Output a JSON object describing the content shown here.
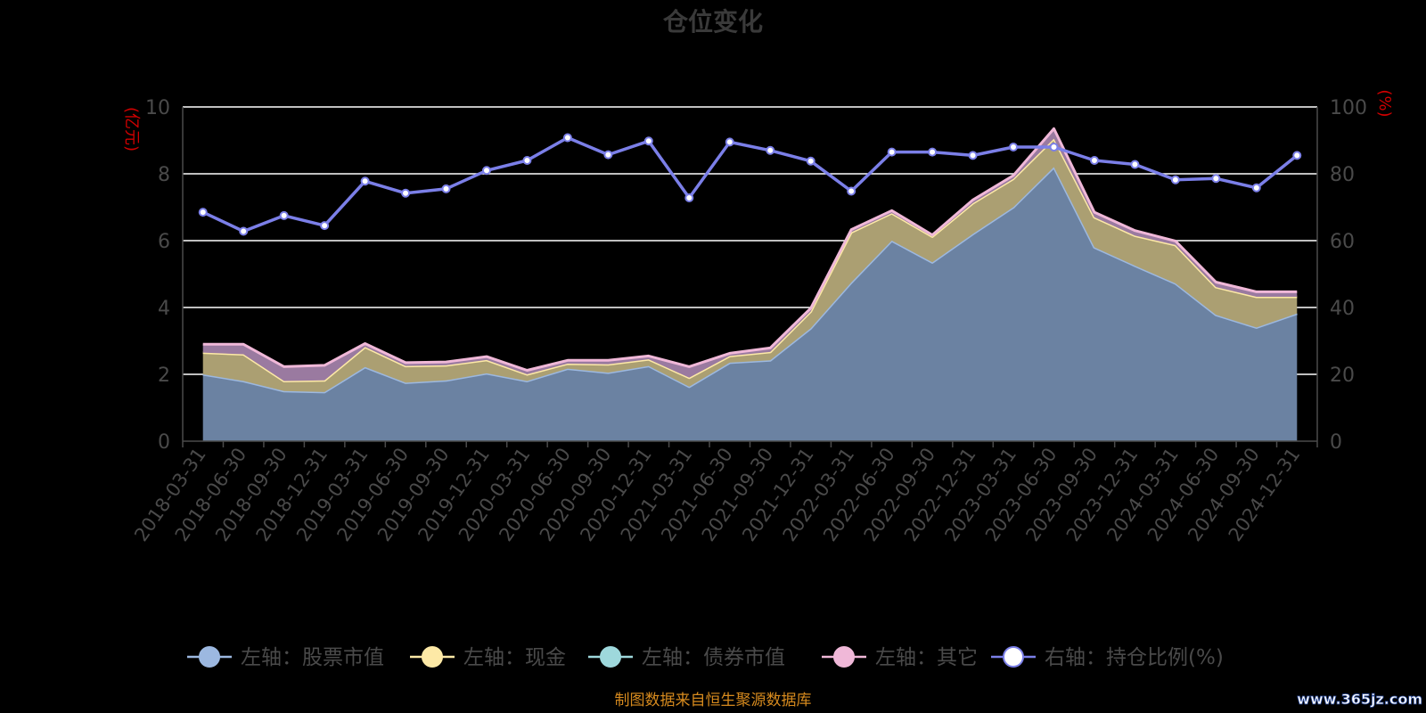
{
  "chart_data": {
    "type": "area",
    "title": "仓位变化",
    "left_axis_unit": "(亿元)",
    "right_axis_unit": "(%)",
    "ylim_left": [
      0,
      10
    ],
    "ylim_right": [
      0,
      100
    ],
    "yticks_left": [
      "0",
      "2",
      "4",
      "6",
      "8",
      "10"
    ],
    "yticks_right": [
      "0",
      "20",
      "40",
      "60",
      "80",
      "100"
    ],
    "grid": true,
    "stacked": true,
    "legend_position": "bottom",
    "categories": [
      "2018-03-31",
      "2018-06-30",
      "2018-09-30",
      "2018-12-31",
      "2019-03-31",
      "2019-06-30",
      "2019-09-30",
      "2019-12-31",
      "2020-03-31",
      "2020-06-30",
      "2020-09-30",
      "2020-12-31",
      "2021-03-31",
      "2021-06-30",
      "2021-09-30",
      "2021-12-31",
      "2022-03-31",
      "2022-06-30",
      "2022-09-30",
      "2022-12-31",
      "2023-03-31",
      "2023-06-30",
      "2023-09-30",
      "2023-12-31",
      "2024-03-31",
      "2024-06-30",
      "2024-09-30",
      "2024-12-31"
    ],
    "series": [
      {
        "name": "左轴：股票市值",
        "axis": "left",
        "color": "#9cb8e0",
        "fill": "#6b82a2",
        "values": [
          2.0,
          1.8,
          1.5,
          1.47,
          2.22,
          1.75,
          1.82,
          2.03,
          1.8,
          2.17,
          2.05,
          2.25,
          1.63,
          2.35,
          2.42,
          3.38,
          4.75,
          6.0,
          5.35,
          6.2,
          7.0,
          8.2,
          5.8,
          5.25,
          4.72,
          3.78,
          3.4,
          3.82
        ]
      },
      {
        "name": "左轴：现金",
        "axis": "left",
        "color": "#fde9a6",
        "fill": "#ab9f72",
        "values": [
          0.65,
          0.8,
          0.3,
          0.35,
          0.6,
          0.5,
          0.45,
          0.4,
          0.2,
          0.15,
          0.25,
          0.2,
          0.27,
          0.2,
          0.25,
          0.5,
          1.5,
          0.82,
          0.77,
          0.92,
          0.85,
          0.85,
          0.9,
          0.9,
          1.15,
          0.83,
          0.92,
          0.5
        ]
      },
      {
        "name": "左轴：债券市值",
        "axis": "left",
        "color": "#9ed8dc",
        "fill": "#7cb8bc",
        "values": [
          0,
          0,
          0,
          0,
          0,
          0,
          0,
          0,
          0,
          0,
          0,
          0,
          0,
          0,
          0,
          0,
          0,
          0,
          0,
          0,
          0,
          0,
          0,
          0,
          0,
          0,
          0,
          0
        ]
      },
      {
        "name": "左轴：其它",
        "axis": "left",
        "color": "#f0b8d8",
        "fill": "#9a7aa0",
        "values": [
          0.25,
          0.3,
          0.43,
          0.45,
          0.1,
          0.1,
          0.1,
          0.1,
          0.12,
          0.1,
          0.12,
          0.1,
          0.33,
          0.08,
          0.12,
          0.1,
          0.08,
          0.08,
          0.05,
          0.1,
          0.1,
          0.3,
          0.15,
          0.15,
          0.12,
          0.15,
          0.15,
          0.15
        ]
      },
      {
        "name": "右轴：持仓比例(%)",
        "axis": "right",
        "color": "#7b7fe8",
        "values": [
          68.5,
          62.8,
          67.5,
          64.5,
          77.8,
          74.2,
          75.5,
          81.0,
          84.0,
          90.8,
          85.7,
          89.8,
          72.8,
          89.5,
          87.0,
          83.8,
          74.8,
          86.5,
          86.5,
          85.5,
          88.0,
          88.0,
          84.0,
          82.8,
          78.2,
          78.6,
          75.8,
          85.5
        ]
      }
    ]
  },
  "footer_note": "制图数据来自恒生聚源数据库",
  "watermark": "www.365jz.com"
}
